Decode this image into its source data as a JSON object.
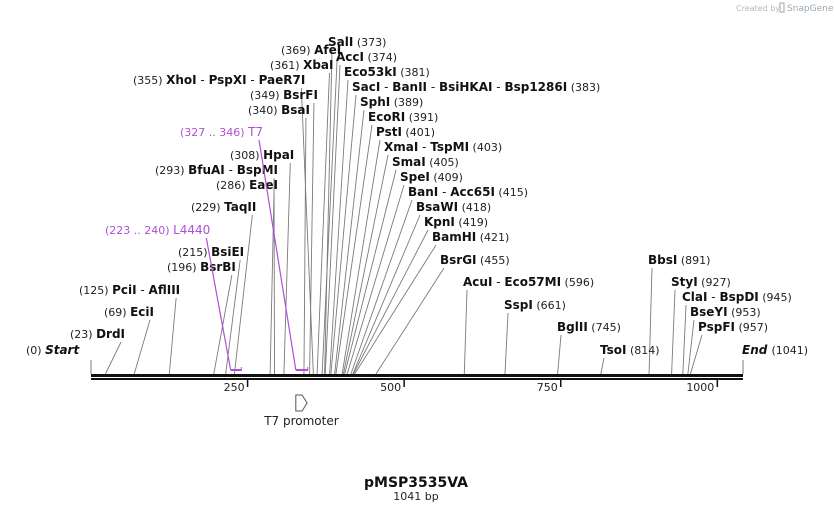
{
  "credit": {
    "prefix": "Created by",
    "brand": "SnapGene"
  },
  "plasmid": {
    "name": "pMSP3535VA",
    "length_label": "1041 bp",
    "length": 1041
  },
  "ends": [
    {
      "name": "Start",
      "pos": "(0)",
      "bp": 0
    },
    {
      "name": "End",
      "pos": "(1041)",
      "bp": 1041
    }
  ],
  "enzymes": [
    {
      "names": [
        "DrdI"
      ],
      "pos": "(23)",
      "bp": 23
    },
    {
      "names": [
        "EciI"
      ],
      "pos": "(69)",
      "bp": 69
    },
    {
      "names": [
        "PciI",
        "AflIII"
      ],
      "pos": "(125)",
      "bp": 125
    },
    {
      "names": [
        "BsrBI"
      ],
      "pos": "(196)",
      "bp": 196
    },
    {
      "names": [
        "BsiEI"
      ],
      "pos": "(215)",
      "bp": 215
    },
    {
      "names": [
        "TaqII"
      ],
      "pos": "(229)",
      "bp": 229
    },
    {
      "names": [
        "EaeI"
      ],
      "pos": "(286)",
      "bp": 286
    },
    {
      "names": [
        "BfuAI",
        "BspMI"
      ],
      "pos": "(293)",
      "bp": 293
    },
    {
      "names": [
        "HpaI"
      ],
      "pos": "(308)",
      "bp": 308
    },
    {
      "names": [
        "BsaI"
      ],
      "pos": "(340)",
      "bp": 340
    },
    {
      "names": [
        "BsrFI"
      ],
      "pos": "(349)",
      "bp": 349
    },
    {
      "names": [
        "XhoI",
        "PspXI",
        "PaeR7I"
      ],
      "pos": "(355)",
      "bp": 355
    },
    {
      "names": [
        "XbaI"
      ],
      "pos": "(361)",
      "bp": 361
    },
    {
      "names": [
        "AfeI"
      ],
      "pos": "(369)",
      "bp": 369
    },
    {
      "names": [
        "SalI"
      ],
      "pos": "(373)",
      "bp": 373
    },
    {
      "names": [
        "AccI"
      ],
      "pos": "(374)",
      "bp": 374
    },
    {
      "names": [
        "Eco53kI"
      ],
      "pos": "(381)",
      "bp": 381
    },
    {
      "names": [
        "SacI",
        "BanII",
        "BsiHKAI",
        "Bsp1286I"
      ],
      "pos": "(383)",
      "bp": 383
    },
    {
      "names": [
        "SphI"
      ],
      "pos": "(389)",
      "bp": 389
    },
    {
      "names": [
        "EcoRI"
      ],
      "pos": "(391)",
      "bp": 391
    },
    {
      "names": [
        "PstI"
      ],
      "pos": "(401)",
      "bp": 401
    },
    {
      "names": [
        "XmaI",
        "TspMI"
      ],
      "pos": "(403)",
      "bp": 403
    },
    {
      "names": [
        "SmaI"
      ],
      "pos": "(405)",
      "bp": 405
    },
    {
      "names": [
        "SpeI"
      ],
      "pos": "(409)",
      "bp": 409
    },
    {
      "names": [
        "BanI",
        "Acc65I"
      ],
      "pos": "(415)",
      "bp": 415
    },
    {
      "names": [
        "BsaWI"
      ],
      "pos": "(418)",
      "bp": 418
    },
    {
      "names": [
        "KpnI"
      ],
      "pos": "(419)",
      "bp": 419
    },
    {
      "names": [
        "BamHI"
      ],
      "pos": "(421)",
      "bp": 421
    },
    {
      "names": [
        "BsrGI"
      ],
      "pos": "(455)",
      "bp": 455
    },
    {
      "names": [
        "AcuI",
        "Eco57MI"
      ],
      "pos": "(596)",
      "bp": 596
    },
    {
      "names": [
        "SspI"
      ],
      "pos": "(661)",
      "bp": 661
    },
    {
      "names": [
        "BglII"
      ],
      "pos": "(745)",
      "bp": 745
    },
    {
      "names": [
        "TsoI"
      ],
      "pos": "(814)",
      "bp": 814
    },
    {
      "names": [
        "BbsI"
      ],
      "pos": "(891)",
      "bp": 891
    },
    {
      "names": [
        "StyI"
      ],
      "pos": "(927)",
      "bp": 927
    },
    {
      "names": [
        "ClaI",
        "BspDI"
      ],
      "pos": "(945)",
      "bp": 945
    },
    {
      "names": [
        "BseYI"
      ],
      "pos": "(953)",
      "bp": 953
    },
    {
      "names": [
        "PspFI"
      ],
      "pos": "(957)",
      "bp": 957
    }
  ],
  "primers": [
    {
      "name": "L4440",
      "pos": "(223 .. 240)",
      "start": 223,
      "end": 240
    },
    {
      "name": "T7",
      "pos": "(327 .. 346)",
      "start": 327,
      "end": 346
    }
  ],
  "features": [
    {
      "name": "T7 promoter",
      "start": 327,
      "end": 345
    }
  ],
  "ruler": {
    "ticks": [
      250,
      500,
      750,
      1000
    ]
  },
  "colors": {
    "primer": "#b04fd6",
    "backbone": "#111111",
    "leader": "#7a7a7a",
    "credit": "#b8b8b8"
  }
}
